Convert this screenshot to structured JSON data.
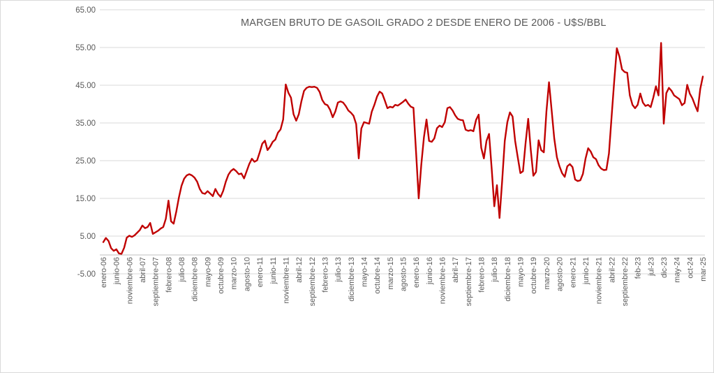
{
  "chart_data": {
    "type": "line",
    "title": "MARGEN BRUTO DE GASOIL GRADO 2 DESDE ENERO DE 2006 - U$S/BBL",
    "xlabel": "",
    "ylabel": "",
    "ylim": [
      -5,
      65
    ],
    "grid": true,
    "legend": false,
    "line_color": "#c00000",
    "grid_color": "#d9d9d9",
    "axis_line_color": "#bfbfbf",
    "tick_label_color": "#595959",
    "y_tick_labels": [
      "65.00",
      "55.00",
      "45.00",
      "35.00",
      "25.00",
      "15.00",
      "5.00",
      "-5.00"
    ],
    "x_tick_labels": [
      "enero-06",
      "junio-06",
      "noviembre-06",
      "abril-07",
      "septiembre-07",
      "febrero-08",
      "julio-08",
      "diciembre-08",
      "mayo-09",
      "octubre-09",
      "marzo-10",
      "agosto-10",
      "enero-11",
      "junio-11",
      "noviembre-11",
      "abril-12",
      "septiembre-12",
      "febrero-13",
      "julio-13",
      "diciembre-13",
      "mayo-14",
      "octubre-14",
      "marzo-15",
      "agosto-15",
      "enero-16",
      "junio-16",
      "noviembre-16",
      "abril-17",
      "septiembre-17",
      "febrero-18",
      "julio-18",
      "diciembre-18",
      "mayo-19",
      "octubre-19",
      "marzo-20",
      "agosto-20",
      "enero-21",
      "junio-21",
      "noviembre-21",
      "abril-22",
      "septiembre-22",
      "feb-23",
      "jul-23",
      "dic-23",
      "may-24",
      "oct-24",
      "mar-25"
    ],
    "x_tick_step_months": 5,
    "values": [
      3.4,
      4.5,
      3.7,
      1.8,
      1.1,
      1.5,
      0.4,
      0.3,
      1.9,
      4.6,
      5.1,
      4.8,
      5.2,
      5.9,
      6.6,
      7.8,
      7.1,
      7.4,
      8.5,
      5.6,
      6.0,
      6.4,
      7.0,
      7.4,
      9.6,
      14.4,
      8.9,
      8.3,
      11.5,
      15.2,
      18.3,
      20.2,
      21.1,
      21.4,
      21.1,
      20.5,
      19.4,
      17.5,
      16.4,
      16.2,
      16.9,
      16.3,
      15.6,
      17.5,
      16.2,
      15.4,
      17.0,
      19.4,
      21.3,
      22.3,
      22.8,
      22.2,
      21.4,
      21.6,
      20.3,
      22.2,
      24.1,
      25.5,
      24.7,
      25.1,
      27.2,
      29.5,
      30.3,
      27.8,
      28.7,
      30.0,
      30.6,
      32.4,
      33.3,
      35.9,
      45.2,
      43.0,
      41.7,
      37.3,
      35.6,
      37.3,
      40.7,
      43.5,
      44.3,
      44.6,
      44.5,
      44.6,
      44.3,
      43.2,
      41.1,
      40.0,
      39.7,
      38.5,
      36.5,
      38.0,
      40.4,
      40.7,
      40.4,
      39.5,
      38.3,
      37.7,
      36.9,
      34.7,
      25.6,
      33.5,
      35.2,
      35.0,
      34.8,
      38.0,
      39.8,
      42.0,
      43.3,
      42.8,
      40.9,
      38.9,
      39.3,
      39.1,
      39.8,
      39.6,
      40.1,
      40.6,
      41.2,
      40.1,
      39.3,
      39.0,
      27.0,
      15.0,
      23.9,
      31.2,
      35.9,
      30.2,
      30.0,
      30.9,
      33.6,
      34.3,
      33.9,
      35.2,
      38.9,
      39.2,
      38.3,
      37.0,
      36.1,
      35.8,
      35.7,
      33.2,
      32.9,
      33.1,
      32.8,
      35.8,
      37.2,
      28.4,
      25.6,
      30.2,
      32.1,
      22.8,
      12.9,
      18.5,
      9.8,
      19.4,
      30.2,
      35.2,
      37.8,
      36.7,
      30.2,
      25.9,
      21.7,
      22.2,
      29.6,
      36.1,
      27.8,
      21.0,
      22.0,
      30.4,
      27.8,
      27.2,
      38.0,
      45.8,
      38.3,
      30.9,
      25.9,
      23.5,
      21.7,
      20.7,
      23.5,
      24.1,
      23.3,
      20.0,
      19.6,
      19.8,
      21.5,
      25.5,
      28.3,
      27.4,
      25.9,
      25.4,
      23.8,
      22.9,
      22.5,
      22.6,
      26.9,
      36.7,
      46.0,
      54.8,
      52.6,
      49.2,
      48.5,
      48.3,
      42.3,
      39.8,
      38.9,
      39.8,
      42.8,
      40.4,
      39.5,
      39.8,
      39.2,
      41.7,
      44.7,
      42.3,
      56.2,
      34.8,
      42.9,
      44.3,
      43.5,
      42.3,
      41.8,
      41.3,
      39.7,
      40.3,
      45.1,
      42.8,
      41.5,
      39.7,
      38.1,
      44.0,
      47.3
    ]
  }
}
